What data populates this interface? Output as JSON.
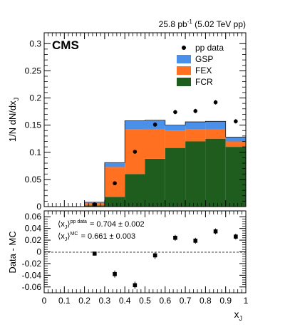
{
  "chart_data": {
    "type": "bar",
    "x_range": [
      0,
      1
    ],
    "x_ticks": [
      "0",
      "0.1",
      "0.2",
      "0.3",
      "0.4",
      "0.5",
      "0.6",
      "0.7",
      "0.8",
      "0.9",
      "1"
    ],
    "xlabel_main": "x",
    "xlabel_sub": "J",
    "lumi_label": "25.8 pb",
    "lumi_exp": "-1",
    "lumi_tail": " (5.02 TeV pp)",
    "experiment_label": "CMS",
    "legend_position": "top-right",
    "upper": {
      "ylabel": "1/N dN/dx",
      "ylabel_sub": "J",
      "ylim": [
        0,
        0.32
      ],
      "y_ticks": [
        0,
        0.05,
        0.1,
        0.15,
        0.2,
        0.25,
        0.3
      ],
      "y_tick_labels": [
        "0",
        "0.05",
        "0.1",
        "0.15",
        "0.2",
        "0.25",
        "0.3"
      ],
      "bin_edges": [
        0.2,
        0.3,
        0.4,
        0.5,
        0.6,
        0.7,
        0.8,
        0.9,
        1.0
      ],
      "series": [
        {
          "name": "FCR",
          "color": "#1f5d1f",
          "values": [
            0.002,
            0.018,
            0.06,
            0.088,
            0.108,
            0.12,
            0.125,
            0.11
          ]
        },
        {
          "name": "FEX",
          "color": "#ff7020",
          "values": [
            0.005,
            0.055,
            0.082,
            0.055,
            0.032,
            0.022,
            0.018,
            0.01
          ]
        },
        {
          "name": "GSP",
          "color": "#4a8fe8",
          "values": [
            0.001,
            0.008,
            0.016,
            0.016,
            0.01,
            0.014,
            0.014,
            0.008
          ]
        }
      ],
      "data_series": {
        "name": "pp data",
        "x": [
          0.25,
          0.35,
          0.45,
          0.55,
          0.65,
          0.75,
          0.85,
          0.95
        ],
        "y": [
          0.004,
          0.043,
          0.101,
          0.151,
          0.174,
          0.176,
          0.192,
          0.157
        ],
        "err": [
          0.001,
          0.002,
          0.003,
          0.004,
          0.004,
          0.004,
          0.004,
          0.004
        ]
      }
    },
    "lower": {
      "ylabel": "Data - MC",
      "ylim": [
        -0.07,
        0.07
      ],
      "y_ticks": [
        -0.06,
        -0.04,
        -0.02,
        0,
        0.02,
        0.04,
        0.06
      ],
      "y_tick_labels": [
        "-0.06",
        "-0.04",
        "-0.02",
        "0",
        "0.02",
        "0.04",
        "0.06"
      ],
      "x": [
        0.25,
        0.35,
        0.45,
        0.55,
        0.65,
        0.75,
        0.85,
        0.95
      ],
      "y": [
        -0.003,
        -0.038,
        -0.057,
        -0.006,
        0.024,
        0.019,
        0.035,
        0.026
      ],
      "err": [
        0.003,
        0.006,
        0.006,
        0.006,
        0.005,
        0.005,
        0.005,
        0.005
      ],
      "annotation_data_label": "pp data",
      "annotation_mc_label": "MC",
      "annotation_data_value": "= 0.704 ± 0.002",
      "annotation_mc_value": "= 0.661 ± 0.003",
      "annotation_symbol": "x",
      "annotation_symbol_sub": "J"
    }
  }
}
